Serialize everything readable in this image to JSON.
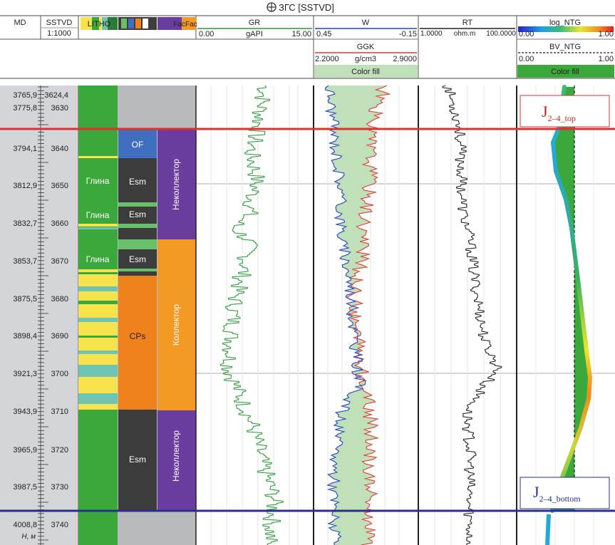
{
  "window": {
    "title": "ЗГС [SSTVD]",
    "icon": "crosshair-circle-icon"
  },
  "header": {
    "md": {
      "title": "MD"
    },
    "sstvd": {
      "title": "SSTVD",
      "scale": "1:1000"
    },
    "litho": {
      "title": "LITHO"
    },
    "facies": {
      "title": "FacFac"
    },
    "gr": {
      "title": "GR",
      "min": "0.00",
      "unit": "gAPI",
      "max": "15.00",
      "color": "#2e9a3a"
    },
    "w": {
      "title": "W",
      "min": "0.45",
      "max": "-0.15",
      "color": "#2342c8"
    },
    "ggk": {
      "title": "GGK",
      "min": "2.2000",
      "unit": "g/cm3",
      "max": "2.9000",
      "fill_label": "Color fill",
      "color": "#e03a2e"
    },
    "rt": {
      "title": "RT",
      "min": "1.0000",
      "unit": "ohm.m",
      "max": "100.0000"
    },
    "log_ntg": {
      "title": "log_NTG",
      "min": "0.00",
      "max": "1.00"
    },
    "bv_ntg": {
      "title": "BV_NTG",
      "min": "0.00",
      "max": "1.00",
      "fill_label": "Color fill"
    }
  },
  "md_ticks": [
    "3765,9",
    "3775,8",
    "3794,1",
    "3812,9",
    "3832,7",
    "3853,7",
    "3875,5",
    "3898,4",
    "3921,3",
    "3943,9",
    "3965,9",
    "3987,5",
    "4008,8"
  ],
  "sstvd_ticks": [
    "3624,4",
    "3630",
    "3640",
    "3650",
    "3660",
    "3670",
    "3680",
    "3690",
    "3700",
    "3710",
    "3720",
    "3730",
    "3740"
  ],
  "depth_unit_label": "H, м",
  "lithology_labels": [
    "Глина",
    "Глина",
    "Глина"
  ],
  "facies_labels": [
    "OF",
    "Esm",
    "Esm",
    "Esm",
    "CPs",
    "Esm"
  ],
  "zone_labels": [
    "Неколлектор",
    "Коллектор",
    "Неколлектор"
  ],
  "markers": {
    "top": {
      "base": "J",
      "sub": "2–4_top",
      "color": "#e03030"
    },
    "bottom": {
      "base": "J",
      "sub": "2–4_bottom",
      "color": "#2a2f8a"
    }
  },
  "colors": {
    "litho_sand": "#f9e34c",
    "litho_clay": "#3aa83a",
    "litho_silt": "#6fc4b4",
    "facies_dark": "#3c3c3c",
    "facies_of": "#3f6fbe",
    "facies_cp": "#f0821e",
    "facies_green": "#6abf69",
    "zone_non": "#6a3e9e",
    "zone_res": "#f29a24",
    "track_gray": "#b8babd",
    "fill_green": "#bfe0b8"
  }
}
